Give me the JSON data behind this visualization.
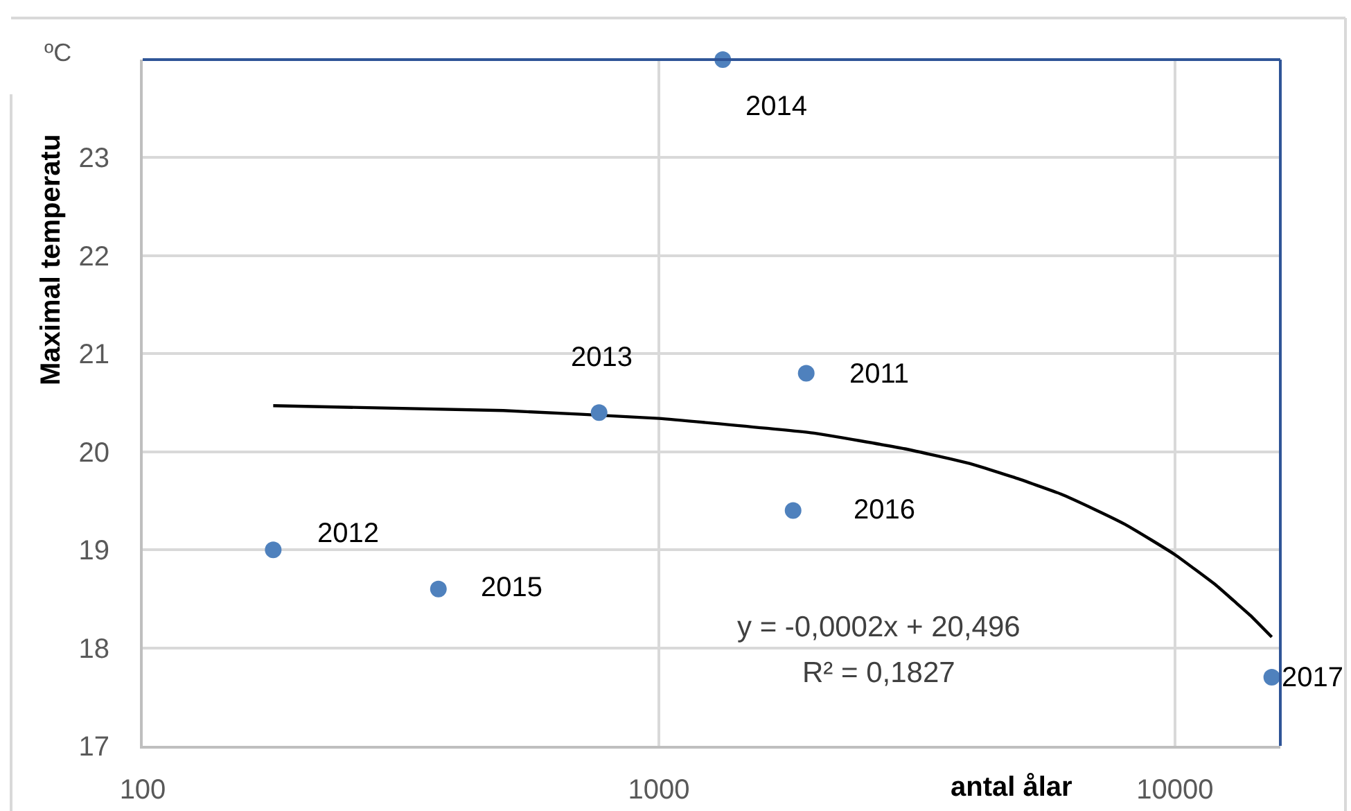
{
  "chart_data": {
    "type": "scatter",
    "ylabel": "Maximal temperatu",
    "xlabel": "antal ålar",
    "annotations": [
      "ºC",
      {
        "text": "2011",
        "x": 1930,
        "y": 20.8
      },
      {
        "text": "2012",
        "x": 179,
        "y": 19.0
      },
      {
        "text": "2013",
        "x": 766,
        "y": 20.4
      },
      {
        "text": "2014",
        "x": 1330,
        "y": 24.0
      },
      {
        "text": "2015",
        "x": 374,
        "y": 18.6
      },
      {
        "text": "2016",
        "x": 1820,
        "y": 19.4
      },
      {
        "text": "2017",
        "x": 15400,
        "y": 17.7
      },
      "y = -0,0002x + 20,496",
      "R² = 0,1827"
    ],
    "series": [
      {
        "color": "#4f81bd",
        "x": [
          1930,
          179,
          766,
          1330,
          374,
          1820,
          15400
        ],
        "values": [
          20.8,
          19.0,
          20.4,
          24.0,
          18.6,
          19.4,
          17.7
        ]
      },
      {
        "type": "line",
        "color": "#000000",
        "marker": "none",
        "x": [
          179,
          500,
          1000,
          2000,
          3000,
          4000,
          5000,
          6000,
          7000,
          8000,
          9000,
          10000,
          11000,
          12000,
          13000,
          14000,
          15400
        ],
        "values": [
          20.47,
          20.42,
          20.34,
          20.19,
          20.03,
          19.88,
          19.72,
          19.57,
          19.41,
          19.26,
          19.1,
          18.95,
          18.79,
          18.64,
          18.48,
          18.33,
          18.11
        ]
      }
    ],
    "xlim": [
      100,
      16000
    ],
    "ylim": [
      17,
      24
    ],
    "xticks": [
      100,
      1000,
      10000
    ],
    "yticks": [
      17,
      18,
      19,
      20,
      21,
      22,
      23
    ],
    "log": "x",
    "grid": true,
    "marker": "circle"
  }
}
